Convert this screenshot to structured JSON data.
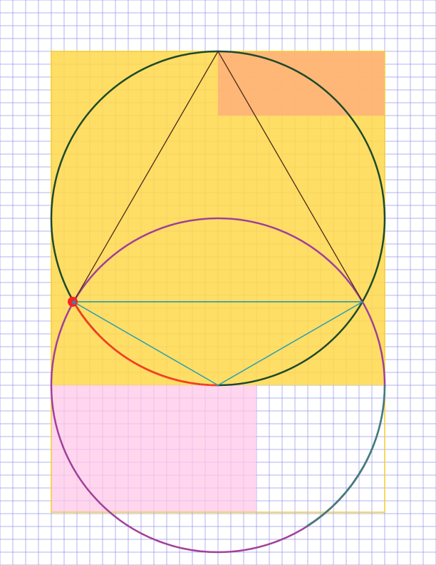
{
  "colors": {
    "background": "#ffffff",
    "grid": "#8a8ae6",
    "yellow_region": "#ffd84a",
    "yellow_border": "#f2cc30",
    "orange_region": "#ffb07a",
    "pink_region": "#ffd2ec",
    "upper_circle": "#1e4a2a",
    "lower_circle": "#a0409a",
    "lower_circle_teal_arc": "#3f7f7a",
    "red_arc": "#ff3b1f",
    "triangle": "#4a2a1a",
    "teal_lines": "#2a9fb2",
    "point": "#ff2020"
  },
  "icons": {
    "marked_point": "red-dot"
  }
}
